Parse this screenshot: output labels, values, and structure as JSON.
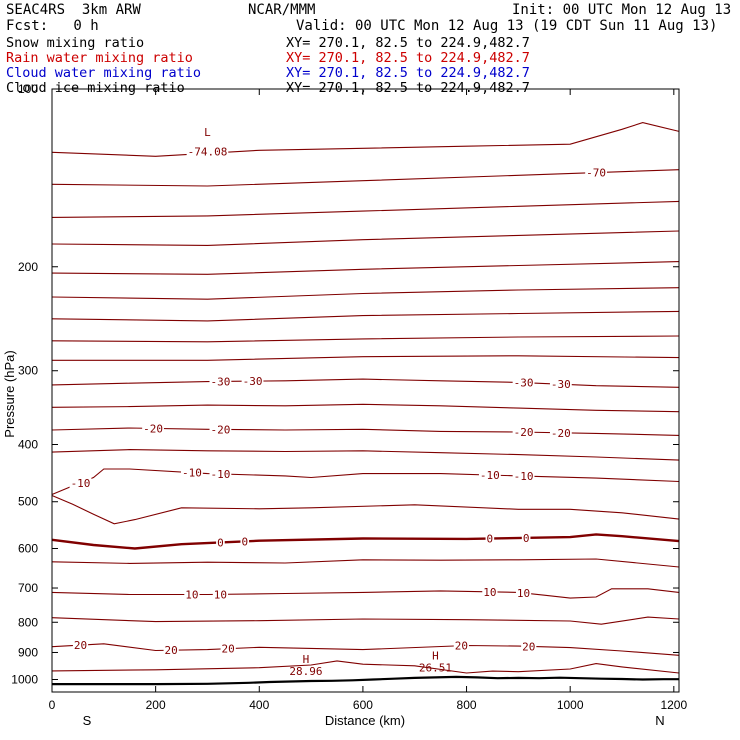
{
  "header": {
    "model": "SEAC4RS  3km ARW",
    "org": "NCAR/MMM",
    "init": "Init: 00 UTC Mon 12 Aug 13",
    "fcst": "Fcst:   0 h",
    "valid": "Valid: 00 UTC Mon 12 Aug 13 (19 CDT Sun 11 Aug 13)"
  },
  "fields": [
    {
      "label": "Snow mixing ratio",
      "xy": "XY= 270.1, 82.5 to 224.9,482.7",
      "color": "#000000"
    },
    {
      "label": "Rain water mixing ratio",
      "xy": "XY= 270.1, 82.5 to 224.9,482.7",
      "color": "#cc0000"
    },
    {
      "label": "Cloud water mixing ratio",
      "xy": "XY= 270.1, 82.5 to 224.9,482.7",
      "color": "#0000cc"
    },
    {
      "label": "Cloud ice mixing ratio",
      "xy": "XY= 270.1, 82.5 to 224.9,482.7",
      "color": "#000000"
    }
  ],
  "chart_data": {
    "type": "line",
    "xlabel": "Distance (km)",
    "ylabel": "Pressure (hPa)",
    "xlim": [
      0,
      1210
    ],
    "ylim": [
      1050,
      100
    ],
    "yscale": "log",
    "xticks": [
      0,
      200,
      400,
      600,
      800,
      1000,
      1200
    ],
    "yticks": [
      100,
      200,
      300,
      400,
      500,
      600,
      700,
      800,
      900,
      1000
    ],
    "ytick_labels": [
      "100",
      "200",
      "300",
      "400",
      "500",
      "600",
      "700",
      "800",
      "900",
      "1000"
    ],
    "end_labels": {
      "left": "S",
      "right": "N"
    },
    "contour_color": "#800000",
    "terrain_color": "#000000",
    "contour_levels": [
      -74,
      -70,
      -65,
      -60,
      -55,
      -50,
      -45,
      -40,
      -35,
      -30,
      -25,
      -20,
      -15,
      -10,
      -5,
      0,
      5,
      10,
      15,
      20,
      25
    ],
    "labeled_contours": [
      {
        "value": -30,
        "labels": [
          "-30",
          "-30"
        ],
        "label_x": [
          325,
          387,
          910,
          982
        ]
      },
      {
        "value": -20,
        "labels": [
          "-20",
          "-20"
        ],
        "label_x": [
          195,
          325,
          910,
          982
        ]
      },
      {
        "value": -10,
        "labels": [
          "-10",
          "-10"
        ],
        "label_x": [
          55,
          270,
          325,
          845,
          910
        ]
      },
      {
        "value": 0,
        "labels": [
          "0",
          "0"
        ],
        "label_x": [
          325,
          372,
          845,
          915
        ]
      },
      {
        "value": 10,
        "labels": [
          "10",
          "10"
        ],
        "label_x": [
          270,
          325,
          845,
          910
        ]
      },
      {
        "value": 20,
        "labels": [
          "20",
          "20"
        ],
        "label_x": [
          55,
          230,
          340,
          790,
          920
        ]
      },
      {
        "value": -70,
        "labels": [
          "-70"
        ],
        "label_x": [
          1050
        ]
      }
    ],
    "extrema": [
      {
        "type": "H",
        "value": "28.96",
        "x_km": 490
      },
      {
        "type": "H",
        "value": "26.51",
        "x_km": 740
      }
    ],
    "min_label": "-74.08",
    "terrain_pressure": [
      [
        0,
        1018
      ],
      [
        100,
        1018
      ],
      [
        200,
        1018
      ],
      [
        300,
        1017
      ],
      [
        380,
        1013
      ],
      [
        420,
        1010
      ],
      [
        460,
        1008
      ],
      [
        500,
        1006
      ],
      [
        540,
        1005
      ],
      [
        580,
        1003
      ],
      [
        620,
        1000
      ],
      [
        660,
        997
      ],
      [
        700,
        994
      ],
      [
        740,
        992
      ],
      [
        780,
        990
      ],
      [
        820,
        992
      ],
      [
        860,
        995
      ],
      [
        900,
        994
      ],
      [
        940,
        995
      ],
      [
        980,
        993
      ],
      [
        1020,
        995
      ],
      [
        1060,
        997
      ],
      [
        1100,
        998
      ],
      [
        1140,
        1000
      ],
      [
        1180,
        999
      ],
      [
        1210,
        999
      ]
    ],
    "contours": [
      {
        "value": -74,
        "x": [
          0,
          200,
          400,
          600,
          800,
          1000,
          1100,
          1140,
          1210
        ],
        "p": [
          128,
          130,
          127,
          126,
          125,
          124,
          117,
          114,
          118
        ]
      },
      {
        "value": -70,
        "x": [
          0,
          300,
          600,
          900,
          1210
        ],
        "p": [
          145,
          146,
          143,
          140,
          137
        ]
      },
      {
        "value": -65,
        "x": [
          0,
          300,
          600,
          900,
          1210
        ],
        "p": [
          165,
          164,
          161,
          158,
          155
        ]
      },
      {
        "value": -60,
        "x": [
          0,
          300,
          600,
          900,
          1210
        ],
        "p": [
          183,
          184,
          180,
          177,
          174
        ]
      },
      {
        "value": -55,
        "x": [
          0,
          300,
          600,
          900,
          1210
        ],
        "p": [
          205,
          206,
          202,
          199,
          196
        ]
      },
      {
        "value": -50,
        "x": [
          0,
          300,
          600,
          900,
          1210
        ],
        "p": [
          225,
          227,
          222,
          219,
          217
        ]
      },
      {
        "value": -45,
        "x": [
          0,
          300,
          600,
          900,
          1210
        ],
        "p": [
          245,
          247,
          242,
          240,
          238
        ]
      },
      {
        "value": -40,
        "x": [
          0,
          300,
          600,
          900,
          1210
        ],
        "p": [
          267,
          268,
          265,
          263,
          262
        ]
      },
      {
        "value": -35,
        "x": [
          0,
          300,
          600,
          900,
          1210
        ],
        "p": [
          288,
          288,
          284,
          283,
          285
        ]
      },
      {
        "value": -30,
        "x": [
          0,
          150,
          300,
          450,
          600,
          750,
          900,
          1050,
          1210
        ],
        "p": [
          317,
          315,
          313,
          312,
          310,
          312,
          314,
          318,
          320
        ]
      },
      {
        "value": -25,
        "x": [
          0,
          150,
          300,
          450,
          600,
          750,
          900,
          1050,
          1210
        ],
        "p": [
          346,
          345,
          343,
          344,
          342,
          344,
          347,
          350,
          352
        ]
      },
      {
        "value": -20,
        "x": [
          0,
          150,
          300,
          450,
          600,
          750,
          900,
          1050,
          1210
        ],
        "p": [
          378,
          375,
          377,
          378,
          377,
          380,
          381,
          383,
          386
        ]
      },
      {
        "value": -15,
        "x": [
          0,
          150,
          300,
          450,
          600,
          750,
          900,
          1050,
          1210
        ],
        "p": [
          412,
          408,
          410,
          411,
          410,
          413,
          416,
          420,
          425
        ]
      },
      {
        "value": -10,
        "x": [
          0,
          40,
          80,
          100,
          150,
          300,
          450,
          500,
          600,
          750,
          900,
          1050,
          1210
        ],
        "p": [
          486,
          470,
          455,
          440,
          440,
          448,
          452,
          455,
          448,
          448,
          452,
          456,
          462
        ]
      },
      {
        "value": -5,
        "x": [
          0,
          40,
          80,
          120,
          160,
          250,
          400,
          500,
          700,
          900,
          1000,
          1100,
          1210
        ],
        "p": [
          488,
          505,
          525,
          545,
          536,
          512,
          514,
          512,
          506,
          515,
          515,
          522,
          535
        ]
      },
      {
        "value": 0,
        "x": [
          0,
          80,
          160,
          250,
          400,
          600,
          800,
          1000,
          1050,
          1100,
          1210
        ],
        "p": [
          580,
          592,
          600,
          590,
          582,
          577,
          578,
          574,
          568,
          572,
          583
        ]
      },
      {
        "value": 5,
        "x": [
          0,
          150,
          300,
          450,
          600,
          750,
          900,
          1050,
          1210
        ],
        "p": [
          632,
          636,
          633,
          635,
          627,
          628,
          627,
          625,
          645
        ]
      },
      {
        "value": 10,
        "x": [
          0,
          150,
          300,
          450,
          600,
          750,
          900,
          950,
          1000,
          1050,
          1080,
          1150,
          1210
        ],
        "p": [
          712,
          718,
          718,
          715,
          712,
          708,
          712,
          720,
          728,
          725,
          702,
          702,
          712
        ]
      },
      {
        "value": 15,
        "x": [
          0,
          200,
          400,
          600,
          800,
          1000,
          1060,
          1150,
          1210
        ],
        "p": [
          786,
          798,
          795,
          790,
          792,
          796,
          806,
          784,
          790
        ]
      },
      {
        "value": 20,
        "x": [
          0,
          100,
          200,
          300,
          400,
          600,
          800,
          900,
          1000,
          1100,
          1210
        ],
        "p": [
          880,
          870,
          893,
          890,
          882,
          890,
          876,
          878,
          883,
          895,
          910
        ]
      },
      {
        "value": 25,
        "x": [
          0,
          200,
          400,
          500,
          550,
          600,
          700,
          800,
          850,
          900,
          1000,
          1050,
          1100,
          1210
        ],
        "p": [
          967,
          963,
          955,
          945,
          930,
          942,
          948,
          975,
          968,
          970,
          960,
          940,
          952,
          975
        ]
      }
    ]
  }
}
